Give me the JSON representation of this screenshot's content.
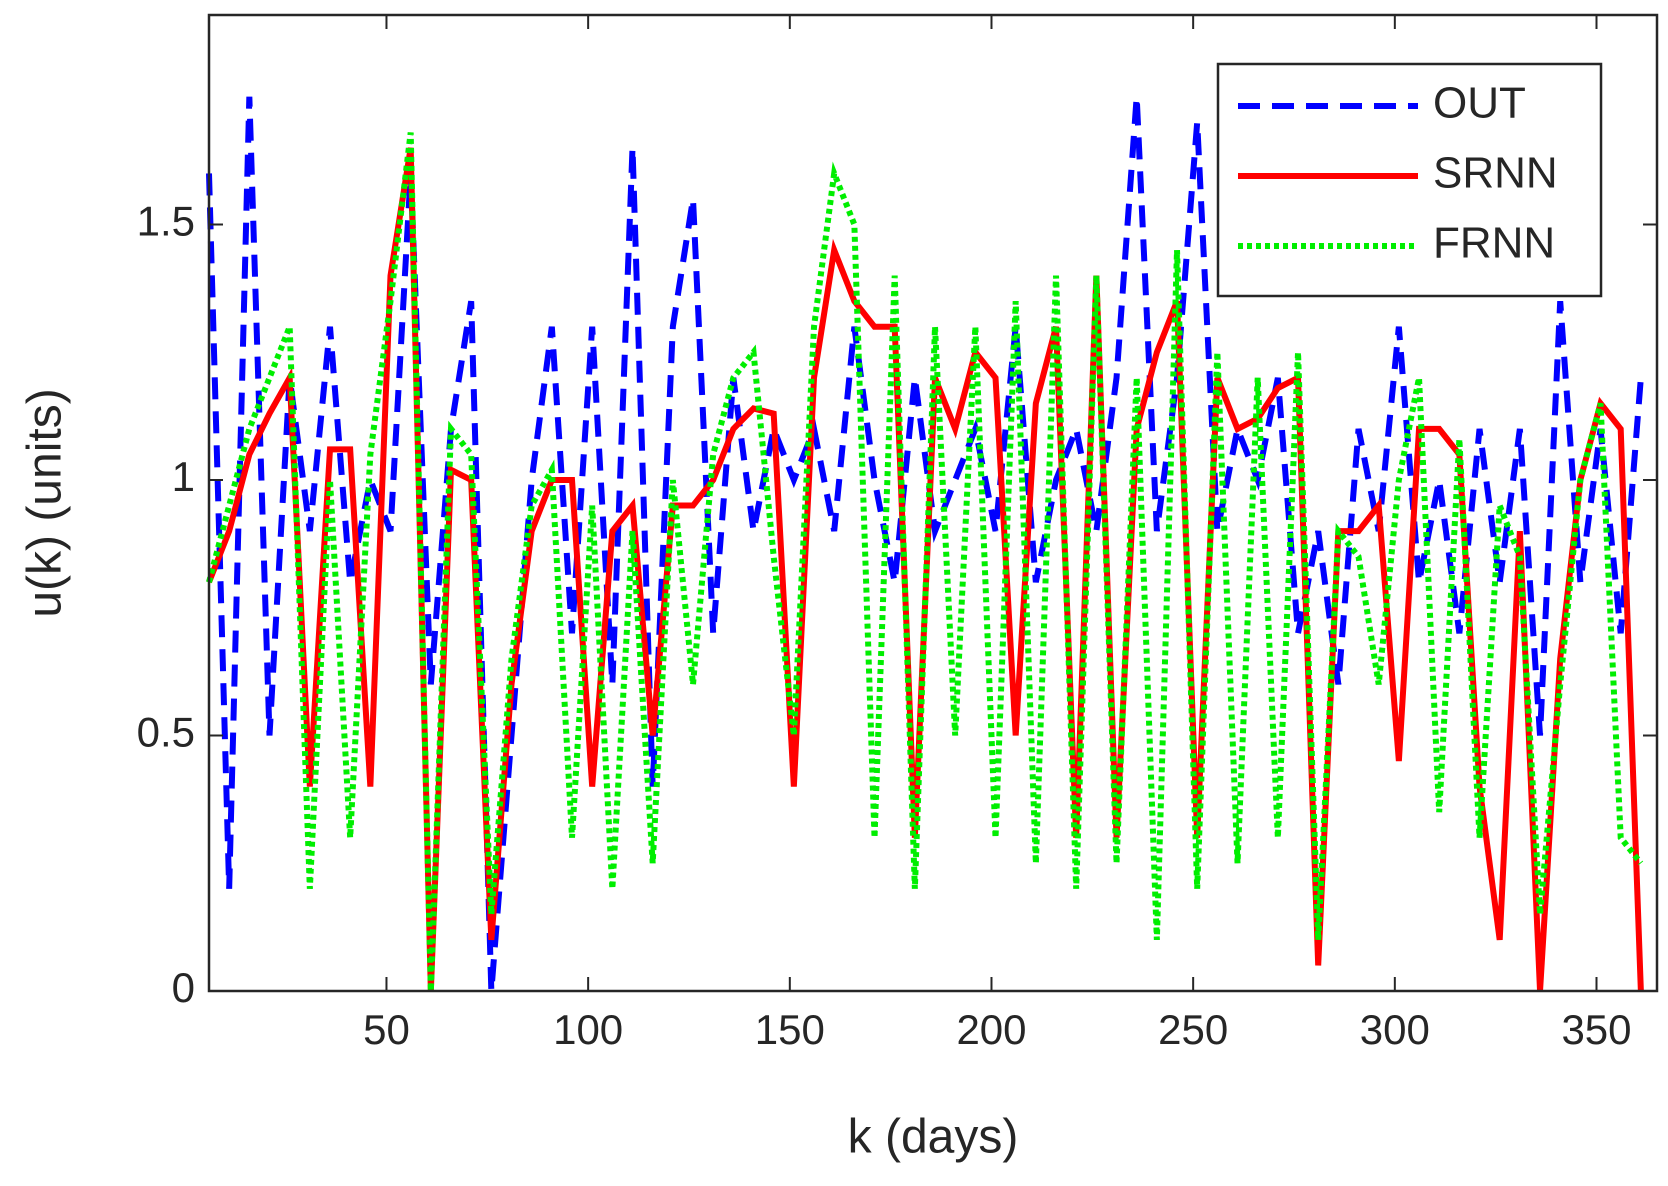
{
  "chart_data": {
    "type": "line",
    "xlabel": "k (days)",
    "ylabel": "u(k) (units)",
    "x": [
      6,
      11,
      16,
      21,
      26,
      31,
      36,
      41,
      46,
      51,
      56,
      61,
      66,
      71,
      76,
      81,
      86,
      91,
      96,
      101,
      106,
      111,
      116,
      121,
      126,
      131,
      136,
      141,
      146,
      151,
      156,
      161,
      166,
      171,
      176,
      181,
      186,
      191,
      196,
      201,
      206,
      211,
      216,
      221,
      226,
      231,
      236,
      241,
      246,
      251,
      256,
      261,
      266,
      271,
      276,
      281,
      286,
      291,
      296,
      301,
      306,
      311,
      316,
      321,
      326,
      331,
      336,
      341,
      346,
      351,
      356,
      361
    ],
    "series": [
      {
        "name": "OUT",
        "color": "#0000ff",
        "style": "dashed",
        "values": [
          1.6,
          0.2,
          1.75,
          0.5,
          1.2,
          0.9,
          1.3,
          0.8,
          1.0,
          0.9,
          1.6,
          0.6,
          1.1,
          1.35,
          0.0,
          0.5,
          1.0,
          1.3,
          0.7,
          1.3,
          0.6,
          1.65,
          0.4,
          1.3,
          1.55,
          0.7,
          1.2,
          0.9,
          1.1,
          1.0,
          1.1,
          0.9,
          1.3,
          1.0,
          0.8,
          1.2,
          0.9,
          1.0,
          1.1,
          0.9,
          1.3,
          0.8,
          1.0,
          1.1,
          0.9,
          1.2,
          1.75,
          0.9,
          1.2,
          1.7,
          0.9,
          1.1,
          1.0,
          1.2,
          0.7,
          0.9,
          0.6,
          1.1,
          0.9,
          1.3,
          0.8,
          1.0,
          0.7,
          1.1,
          0.8,
          1.1,
          0.5,
          1.35,
          0.8,
          1.1,
          0.7,
          1.2
        ]
      },
      {
        "name": "SRNN",
        "color": "#ff0000",
        "style": "solid",
        "values": [
          0.8,
          0.9,
          1.05,
          1.13,
          1.2,
          0.4,
          1.06,
          1.06,
          0.4,
          1.4,
          1.65,
          0.0,
          1.02,
          1.0,
          0.1,
          0.6,
          0.9,
          1.0,
          1.0,
          0.4,
          0.9,
          0.95,
          0.5,
          0.95,
          0.95,
          1.0,
          1.1,
          1.14,
          1.13,
          0.4,
          1.2,
          1.45,
          1.35,
          1.3,
          1.3,
          0.3,
          1.2,
          1.1,
          1.25,
          1.2,
          0.5,
          1.15,
          1.3,
          0.3,
          1.4,
          0.3,
          1.1,
          1.25,
          1.35,
          0.3,
          1.2,
          1.1,
          1.12,
          1.18,
          1.2,
          0.05,
          0.9,
          0.9,
          0.95,
          0.45,
          1.1,
          1.1,
          1.05,
          0.4,
          0.1,
          0.9,
          0.0,
          0.65,
          1.0,
          1.15,
          1.1,
          0.0
        ]
      },
      {
        "name": "FRNN",
        "color": "#00ee00",
        "style": "dotted",
        "values": [
          0.8,
          0.95,
          1.1,
          1.2,
          1.3,
          0.2,
          1.0,
          0.3,
          1.05,
          1.35,
          1.68,
          0.0,
          1.1,
          1.05,
          0.15,
          0.65,
          0.95,
          1.02,
          0.3,
          0.95,
          0.2,
          0.9,
          0.25,
          1.0,
          0.6,
          1.05,
          1.2,
          1.25,
          0.85,
          0.5,
          1.3,
          1.6,
          1.5,
          0.3,
          1.4,
          0.2,
          1.3,
          0.5,
          1.3,
          0.3,
          1.35,
          0.25,
          1.4,
          0.2,
          1.4,
          0.25,
          1.2,
          0.1,
          1.45,
          0.2,
          1.25,
          0.25,
          1.2,
          0.3,
          1.25,
          0.1,
          0.9,
          0.85,
          0.6,
          1.0,
          1.2,
          0.35,
          1.08,
          0.3,
          0.95,
          0.85,
          0.15,
          0.6,
          1.0,
          1.15,
          0.3,
          0.25
        ]
      }
    ],
    "xlim": [
      6,
      365
    ],
    "xticks": [
      50,
      100,
      150,
      200,
      250,
      300,
      350
    ],
    "ylim": [
      0,
      1.91
    ],
    "yticks": [
      0,
      0.5,
      1,
      1.5
    ],
    "grid": false,
    "legend": "upper right"
  }
}
